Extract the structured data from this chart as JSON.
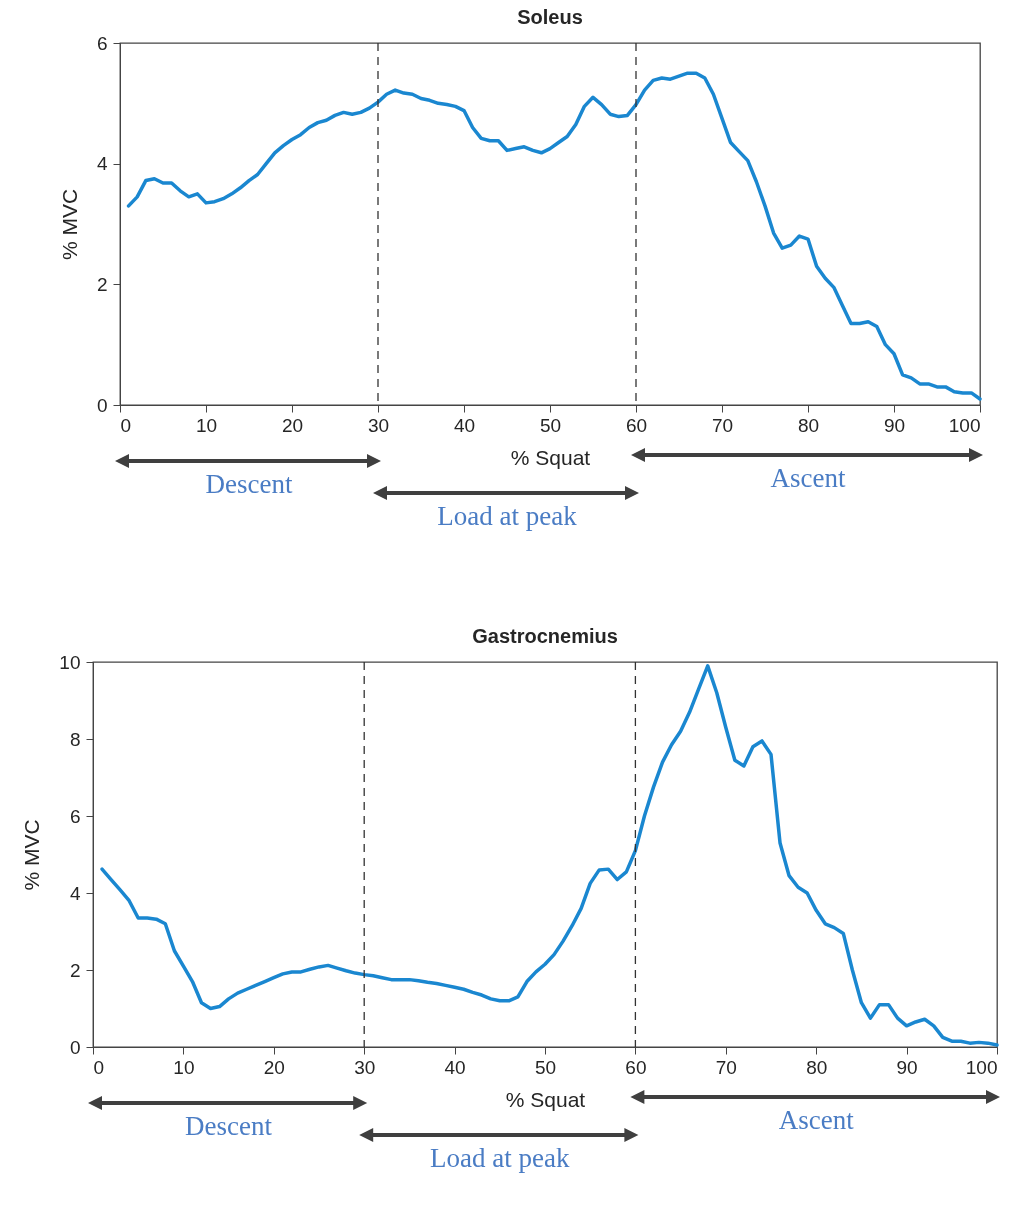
{
  "chart_data": [
    {
      "type": "line",
      "title": "Soleus",
      "xlabel": "% Squat",
      "ylabel": "% MVC",
      "xlim": [
        0,
        100
      ],
      "xticks": [
        0,
        10,
        20,
        30,
        40,
        50,
        60,
        70,
        80,
        90,
        100
      ],
      "ylim": [
        0,
        6
      ],
      "yticks": [
        0,
        2,
        4,
        6
      ],
      "x": [
        1,
        2,
        3,
        4,
        5,
        6,
        7,
        8,
        9,
        10,
        11,
        12,
        13,
        14,
        15,
        16,
        17,
        18,
        19,
        20,
        21,
        22,
        23,
        24,
        25,
        26,
        27,
        28,
        29,
        30,
        31,
        32,
        33,
        34,
        35,
        36,
        37,
        38,
        39,
        40,
        41,
        42,
        43,
        44,
        45,
        46,
        47,
        48,
        49,
        50,
        51,
        52,
        53,
        54,
        55,
        56,
        57,
        58,
        59,
        60,
        61,
        62,
        63,
        64,
        65,
        66,
        67,
        68,
        69,
        70,
        71,
        72,
        73,
        74,
        75,
        76,
        77,
        78,
        79,
        80,
        81,
        82,
        83,
        84,
        85,
        86,
        87,
        88,
        89,
        90,
        91,
        92,
        93,
        94,
        95,
        96,
        97,
        98,
        99,
        100
      ],
      "series": [
        {
          "color": "#1a87d0",
          "values": [
            3.3,
            3.45,
            3.72,
            3.75,
            3.68,
            3.68,
            3.55,
            3.45,
            3.5,
            3.35,
            3.37,
            3.42,
            3.5,
            3.6,
            3.72,
            3.82,
            4.0,
            4.18,
            4.3,
            4.4,
            4.48,
            4.6,
            4.68,
            4.72,
            4.8,
            4.85,
            4.82,
            4.85,
            4.92,
            5.02,
            5.15,
            5.22,
            5.17,
            5.15,
            5.08,
            5.05,
            5.0,
            4.98,
            4.95,
            4.88,
            4.6,
            4.42,
            4.38,
            4.38,
            4.22,
            4.25,
            4.28,
            4.22,
            4.18,
            4.25,
            4.35,
            4.45,
            4.65,
            4.95,
            5.1,
            4.98,
            4.82,
            4.78,
            4.8,
            4.98,
            5.22,
            5.38,
            5.42,
            5.4,
            5.45,
            5.5,
            5.5,
            5.42,
            5.15,
            4.75,
            4.35,
            4.2,
            4.05,
            3.7,
            3.3,
            2.85,
            2.6,
            2.65,
            2.8,
            2.75,
            2.3,
            2.1,
            1.95,
            1.65,
            1.35,
            1.35,
            1.38,
            1.3,
            1.0,
            0.85,
            0.5,
            0.45,
            0.35,
            0.35,
            0.3,
            0.3,
            0.22,
            0.2,
            0.2,
            0.1
          ]
        }
      ],
      "ref_lines": [
        {
          "axis": "x",
          "value": 30,
          "color": "#333333",
          "line_style": "dashed"
        },
        {
          "axis": "x",
          "value": 60,
          "color": "#333333",
          "line_style": "dashed"
        }
      ],
      "annotations": [
        "Descent",
        "Load at peak",
        "Ascent"
      ]
    },
    {
      "type": "line",
      "title": "Gastrocnemius",
      "xlabel": "% Squat",
      "ylabel": "% MVC",
      "xlim": [
        0,
        100
      ],
      "xticks": [
        0,
        10,
        20,
        30,
        40,
        50,
        60,
        70,
        80,
        90,
        100
      ],
      "ylim": [
        0,
        10
      ],
      "yticks": [
        0,
        2,
        4,
        6,
        8,
        10
      ],
      "x": [
        1,
        2,
        3,
        4,
        5,
        6,
        7,
        8,
        9,
        10,
        11,
        12,
        13,
        14,
        15,
        16,
        17,
        18,
        19,
        20,
        21,
        22,
        23,
        24,
        25,
        26,
        27,
        28,
        29,
        30,
        31,
        32,
        33,
        34,
        35,
        36,
        37,
        38,
        39,
        40,
        41,
        42,
        43,
        44,
        45,
        46,
        47,
        48,
        49,
        50,
        51,
        52,
        53,
        54,
        55,
        56,
        57,
        58,
        59,
        60,
        61,
        62,
        63,
        64,
        65,
        66,
        67,
        68,
        69,
        70,
        71,
        72,
        73,
        74,
        75,
        76,
        77,
        78,
        79,
        80,
        81,
        82,
        83,
        84,
        85,
        86,
        87,
        88,
        89,
        90,
        91,
        92,
        93,
        94,
        95,
        96,
        97,
        98,
        99,
        100
      ],
      "series": [
        {
          "color": "#1a87d0",
          "values": [
            4.62,
            4.35,
            4.08,
            3.8,
            3.35,
            3.35,
            3.32,
            3.2,
            2.5,
            2.1,
            1.7,
            1.15,
            1.0,
            1.05,
            1.25,
            1.4,
            1.5,
            1.6,
            1.7,
            1.8,
            1.9,
            1.95,
            1.95,
            2.02,
            2.08,
            2.12,
            2.05,
            1.98,
            1.92,
            1.88,
            1.85,
            1.8,
            1.75,
            1.75,
            1.75,
            1.72,
            1.68,
            1.65,
            1.6,
            1.55,
            1.5,
            1.42,
            1.35,
            1.25,
            1.2,
            1.2,
            1.3,
            1.7,
            1.95,
            2.15,
            2.4,
            2.75,
            3.15,
            3.6,
            4.25,
            4.6,
            4.62,
            4.35,
            4.55,
            5.1,
            6.0,
            6.75,
            7.4,
            7.85,
            8.2,
            8.7,
            9.3,
            9.9,
            9.2,
            8.3,
            7.45,
            7.3,
            7.8,
            7.95,
            7.6,
            5.3,
            4.45,
            4.15,
            4.0,
            3.55,
            3.2,
            3.1,
            2.95,
            2.0,
            1.15,
            0.75,
            1.1,
            1.1,
            0.75,
            0.55,
            0.65,
            0.72,
            0.55,
            0.25,
            0.15,
            0.15,
            0.1,
            0.12,
            0.1,
            0.05
          ]
        }
      ],
      "ref_lines": [
        {
          "axis": "x",
          "value": 30,
          "color": "#333333",
          "line_style": "dashed"
        },
        {
          "axis": "x",
          "value": 60,
          "color": "#333333",
          "line_style": "dashed"
        }
      ],
      "annotations": [
        "Descent",
        "Load at peak",
        "Ascent"
      ]
    }
  ]
}
